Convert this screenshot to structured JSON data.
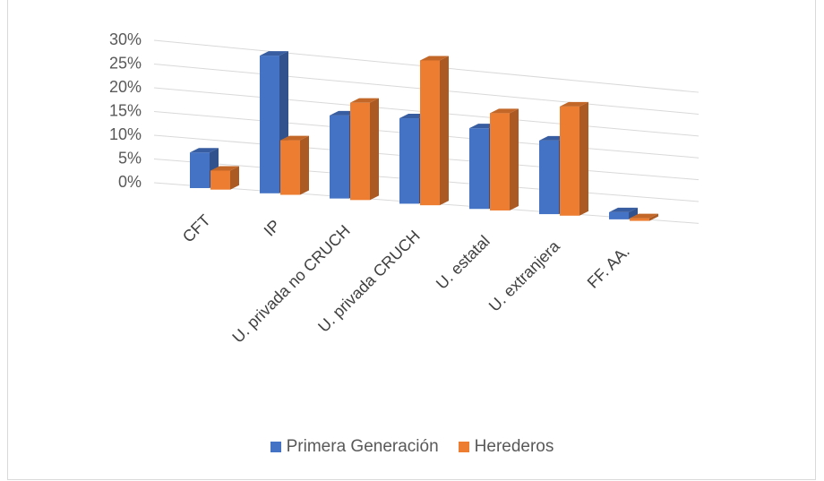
{
  "chart_data": {
    "type": "bar",
    "title": "",
    "categories": [
      "CFT",
      "IP",
      "U. privada no CRUCH",
      "U. privada CRUCH",
      "U. estatal",
      "U. extranjera",
      "FF. AA."
    ],
    "series": [
      {
        "name": "Primera Generación",
        "color": "#4472C4",
        "values": [
          7.5,
          29.0,
          17.5,
          18.0,
          17.0,
          15.5,
          1.5
        ]
      },
      {
        "name": "Herederos",
        "color": "#ED7D31",
        "values": [
          4.0,
          11.5,
          20.5,
          30.5,
          20.5,
          23.0,
          0.5
        ]
      }
    ],
    "y_ticks": [
      "0%",
      "5%",
      "10%",
      "15%",
      "20%",
      "25%",
      "30%"
    ],
    "ylim": [
      0,
      30
    ],
    "grid": true,
    "legend_position": "bottom"
  }
}
